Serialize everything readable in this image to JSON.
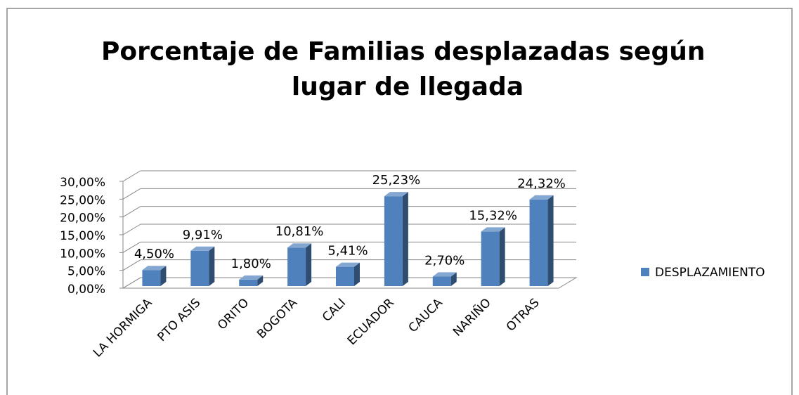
{
  "chart_data": {
    "type": "bar3d",
    "title": "Porcentaje de Familias desplazadas según lugar de llegada",
    "categories": [
      "LA HORMIGA",
      "PTO ASIS",
      "ORITO",
      "BOGOTA",
      "CALI",
      "ECUADOR",
      "CAUCA",
      "NARIÑO",
      "OTRAS"
    ],
    "series": [
      {
        "name": "DESPLAZAMIENTO",
        "color": "#4f81bd",
        "values": [
          4.5,
          9.91,
          1.8,
          10.81,
          5.41,
          25.23,
          2.7,
          15.32,
          24.32
        ],
        "value_labels": [
          "4,50%",
          "9,91%",
          "1,80%",
          "10,81%",
          "5,41%",
          "25,23%",
          "2,70%",
          "15,32%",
          "24,32%"
        ]
      }
    ],
    "ylim": [
      0,
      30
    ],
    "yticks": [
      {
        "value": 0,
        "label": "0,00%"
      },
      {
        "value": 5,
        "label": "5,00%"
      },
      {
        "value": 10,
        "label": "10,00%"
      },
      {
        "value": 15,
        "label": "15,00%"
      },
      {
        "value": 20,
        "label": "20,00%"
      },
      {
        "value": 25,
        "label": "25,00%"
      },
      {
        "value": 30,
        "label": "30,00%"
      }
    ],
    "grid": true,
    "legend": "right"
  }
}
